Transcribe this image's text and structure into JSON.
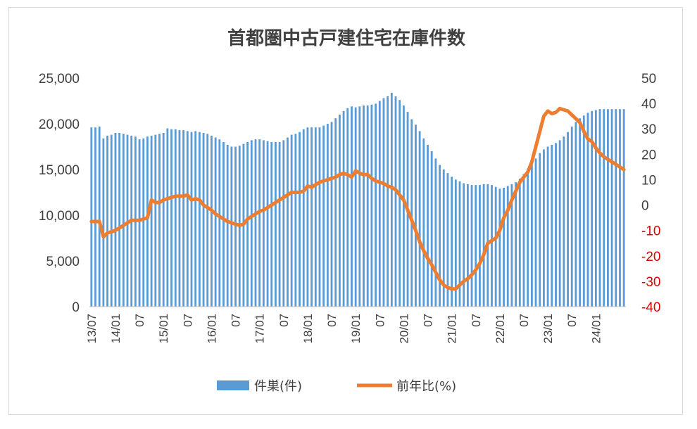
{
  "chart_data": {
    "type": "bar",
    "title": "首都圏中古戸建住宅在庫件数",
    "xlabel": "",
    "ylabel": "",
    "ylim": [
      0,
      25000
    ],
    "y2lim": [
      -40,
      50
    ],
    "yticks": [
      "0",
      "5,000",
      "10,000",
      "15,000",
      "20,000",
      "25,000"
    ],
    "y2ticks": [
      "-40",
      "-30",
      "-20",
      "-10",
      "0",
      "10",
      "20",
      "30",
      "40",
      "50"
    ],
    "y2_negative_color": "#e00000",
    "grid": false,
    "legend_position": "bottom",
    "x_tick_labels": [
      "13/07",
      "14/01",
      "07",
      "15/01",
      "07",
      "16/01",
      "07",
      "17/01",
      "07",
      "18/01",
      "07",
      "19/01",
      "07",
      "20/01",
      "07",
      "21/01",
      "07",
      "22/01",
      "07",
      "23/01",
      "07",
      "24/01"
    ],
    "x_start": "2013-07",
    "x_end": "2024-08",
    "series": [
      {
        "name": "件巣(件)",
        "type": "bar",
        "axis": "left",
        "color": "#5b9bd5",
        "values": [
          19600,
          19600,
          19700,
          18400,
          18700,
          18800,
          19000,
          19000,
          18900,
          18800,
          18700,
          18600,
          18300,
          18400,
          18600,
          18700,
          18800,
          18900,
          19000,
          19500,
          19400,
          19400,
          19300,
          19300,
          19200,
          19100,
          19200,
          19100,
          19000,
          18900,
          18700,
          18500,
          18300,
          18000,
          17700,
          17500,
          17500,
          17600,
          17800,
          18000,
          18200,
          18300,
          18300,
          18200,
          18100,
          18000,
          18000,
          18000,
          18200,
          18500,
          18800,
          18900,
          19100,
          19400,
          19600,
          19600,
          19600,
          19600,
          19800,
          20000,
          20200,
          20600,
          21000,
          21400,
          21700,
          21900,
          21800,
          21900,
          22000,
          22000,
          22100,
          22200,
          22500,
          22800,
          23000,
          23400,
          23000,
          22600,
          22000,
          21300,
          20500,
          19900,
          19200,
          18400,
          17700,
          17000,
          16200,
          15500,
          15000,
          14600,
          14200,
          13900,
          13700,
          13500,
          13400,
          13300,
          13300,
          13300,
          13400,
          13400,
          13300,
          13100,
          12900,
          13000,
          13200,
          13400,
          13600,
          14000,
          14500,
          15100,
          15600,
          16200,
          16800,
          17200,
          17500,
          17700,
          17900,
          18200,
          18600,
          19100,
          19700,
          20200,
          20600,
          20900,
          21200,
          21400,
          21500,
          21600,
          21600,
          21600,
          21600,
          21600,
          21600,
          21600
        ]
      },
      {
        "name": "前年比(%)",
        "type": "line",
        "axis": "right",
        "color": "#ed7d31",
        "values": [
          -6.5,
          -6.5,
          -6.5,
          -12.5,
          -11.0,
          -10.5,
          -10.0,
          -9.0,
          -8.0,
          -7.0,
          -6.0,
          -6.0,
          -6.0,
          -5.5,
          -5.0,
          2.0,
          1.0,
          1.0,
          2.0,
          2.5,
          3.0,
          3.5,
          3.5,
          3.5,
          4.0,
          2.0,
          2.5,
          2.0,
          0.0,
          -1.0,
          -2.0,
          -3.5,
          -4.5,
          -5.5,
          -6.5,
          -7.0,
          -7.5,
          -8.0,
          -7.5,
          -5.5,
          -4.5,
          -3.5,
          -2.5,
          -2.0,
          -1.0,
          0.0,
          1.0,
          2.0,
          3.0,
          4.0,
          5.0,
          5.0,
          5.0,
          5.5,
          7.5,
          7.0,
          8.0,
          9.0,
          9.5,
          10.0,
          10.5,
          11.0,
          12.0,
          12.5,
          12.0,
          11.0,
          13.5,
          12.5,
          12.0,
          12.0,
          10.5,
          9.5,
          9.0,
          8.5,
          7.5,
          7.0,
          6.0,
          4.0,
          2.0,
          -2.0,
          -6.0,
          -10.0,
          -14.5,
          -18.0,
          -21.0,
          -23.5,
          -26.5,
          -29.5,
          -31.5,
          -32.5,
          -33.0,
          -33.0,
          -31.5,
          -30.0,
          -29.0,
          -27.5,
          -25.5,
          -23.0,
          -19.5,
          -15.0,
          -14.0,
          -13.0,
          -10.0,
          -5.0,
          -2.0,
          2.0,
          5.5,
          9.0,
          11.0,
          13.0,
          17.0,
          23.0,
          29.0,
          35.0,
          37.0,
          36.0,
          36.5,
          38.0,
          37.5,
          37.0,
          35.5,
          34.0,
          32.5,
          29.0,
          26.0,
          25.0,
          22.5,
          20.5,
          19.0,
          18.0,
          17.0,
          16.0,
          15.0,
          14.0
        ]
      }
    ]
  }
}
